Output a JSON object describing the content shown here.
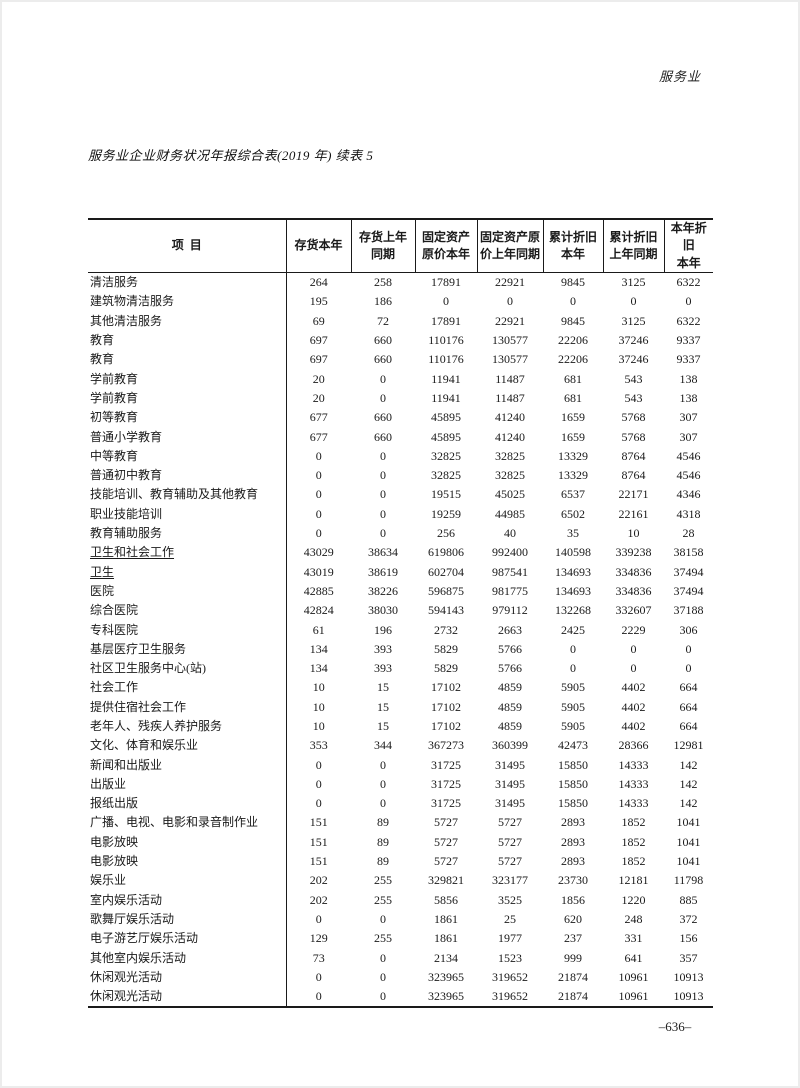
{
  "page": {
    "header_right": "服务业",
    "title": "服务业企业财务状况年报综合表(2019 年) 续表 5",
    "page_number": "–636–"
  },
  "table": {
    "columns": [
      "项目",
      "存货本年",
      "存货上年\n同期",
      "固定资产\n原价本年",
      "固定资产原\n价上年同期",
      "累计折旧\n本年",
      "累计折旧\n上年同期",
      "本年折旧\n本年"
    ],
    "rows": [
      {
        "label": "清洁服务",
        "underline": false,
        "values": [
          "264",
          "258",
          "17891",
          "22921",
          "9845",
          "3125",
          "6322"
        ]
      },
      {
        "label": "建筑物清洁服务",
        "underline": false,
        "values": [
          "195",
          "186",
          "0",
          "0",
          "0",
          "0",
          "0"
        ]
      },
      {
        "label": "其他清洁服务",
        "underline": false,
        "values": [
          "69",
          "72",
          "17891",
          "22921",
          "9845",
          "3125",
          "6322"
        ]
      },
      {
        "label": "教育",
        "underline": false,
        "values": [
          "697",
          "660",
          "110176",
          "130577",
          "22206",
          "37246",
          "9337"
        ]
      },
      {
        "label": "教育",
        "underline": false,
        "values": [
          "697",
          "660",
          "110176",
          "130577",
          "22206",
          "37246",
          "9337"
        ]
      },
      {
        "label": "学前教育",
        "underline": false,
        "values": [
          "20",
          "0",
          "11941",
          "11487",
          "681",
          "543",
          "138"
        ]
      },
      {
        "label": "学前教育",
        "underline": false,
        "values": [
          "20",
          "0",
          "11941",
          "11487",
          "681",
          "543",
          "138"
        ]
      },
      {
        "label": "初等教育",
        "underline": false,
        "values": [
          "677",
          "660",
          "45895",
          "41240",
          "1659",
          "5768",
          "307"
        ]
      },
      {
        "label": "普通小学教育",
        "underline": false,
        "values": [
          "677",
          "660",
          "45895",
          "41240",
          "1659",
          "5768",
          "307"
        ]
      },
      {
        "label": "中等教育",
        "underline": false,
        "values": [
          "0",
          "0",
          "32825",
          "32825",
          "13329",
          "8764",
          "4546"
        ]
      },
      {
        "label": "普通初中教育",
        "underline": false,
        "values": [
          "0",
          "0",
          "32825",
          "32825",
          "13329",
          "8764",
          "4546"
        ]
      },
      {
        "label": "技能培训、教育辅助及其他教育",
        "underline": false,
        "values": [
          "0",
          "0",
          "19515",
          "45025",
          "6537",
          "22171",
          "4346"
        ]
      },
      {
        "label": "职业技能培训",
        "underline": false,
        "values": [
          "0",
          "0",
          "19259",
          "44985",
          "6502",
          "22161",
          "4318"
        ]
      },
      {
        "label": "教育辅助服务",
        "underline": false,
        "values": [
          "0",
          "0",
          "256",
          "40",
          "35",
          "10",
          "28"
        ]
      },
      {
        "label": "卫生和社会工作",
        "underline": true,
        "values": [
          "43029",
          "38634",
          "619806",
          "992400",
          "140598",
          "339238",
          "38158"
        ]
      },
      {
        "label": "卫生",
        "underline": true,
        "values": [
          "43019",
          "38619",
          "602704",
          "987541",
          "134693",
          "334836",
          "37494"
        ]
      },
      {
        "label": "医院",
        "underline": false,
        "values": [
          "42885",
          "38226",
          "596875",
          "981775",
          "134693",
          "334836",
          "37494"
        ]
      },
      {
        "label": "综合医院",
        "underline": false,
        "values": [
          "42824",
          "38030",
          "594143",
          "979112",
          "132268",
          "332607",
          "37188"
        ]
      },
      {
        "label": "专科医院",
        "underline": false,
        "values": [
          "61",
          "196",
          "2732",
          "2663",
          "2425",
          "2229",
          "306"
        ]
      },
      {
        "label": "基层医疗卫生服务",
        "underline": false,
        "values": [
          "134",
          "393",
          "5829",
          "5766",
          "0",
          "0",
          "0"
        ]
      },
      {
        "label": "社区卫生服务中心(站)",
        "underline": false,
        "values": [
          "134",
          "393",
          "5829",
          "5766",
          "0",
          "0",
          "0"
        ]
      },
      {
        "label": "社会工作",
        "underline": false,
        "values": [
          "10",
          "15",
          "17102",
          "4859",
          "5905",
          "4402",
          "664"
        ]
      },
      {
        "label": "提供住宿社会工作",
        "underline": false,
        "values": [
          "10",
          "15",
          "17102",
          "4859",
          "5905",
          "4402",
          "664"
        ]
      },
      {
        "label": "老年人、残疾人养护服务",
        "underline": false,
        "values": [
          "10",
          "15",
          "17102",
          "4859",
          "5905",
          "4402",
          "664"
        ]
      },
      {
        "label": "文化、体育和娱乐业",
        "underline": false,
        "values": [
          "353",
          "344",
          "367273",
          "360399",
          "42473",
          "28366",
          "12981"
        ]
      },
      {
        "label": "新闻和出版业",
        "underline": false,
        "values": [
          "0",
          "0",
          "31725",
          "31495",
          "15850",
          "14333",
          "142"
        ]
      },
      {
        "label": "出版业",
        "underline": false,
        "values": [
          "0",
          "0",
          "31725",
          "31495",
          "15850",
          "14333",
          "142"
        ]
      },
      {
        "label": "报纸出版",
        "underline": false,
        "values": [
          "0",
          "0",
          "31725",
          "31495",
          "15850",
          "14333",
          "142"
        ]
      },
      {
        "label": "广播、电视、电影和录音制作业",
        "underline": false,
        "values": [
          "151",
          "89",
          "5727",
          "5727",
          "2893",
          "1852",
          "1041"
        ]
      },
      {
        "label": "电影放映",
        "underline": false,
        "values": [
          "151",
          "89",
          "5727",
          "5727",
          "2893",
          "1852",
          "1041"
        ]
      },
      {
        "label": "电影放映",
        "underline": false,
        "values": [
          "151",
          "89",
          "5727",
          "5727",
          "2893",
          "1852",
          "1041"
        ]
      },
      {
        "label": "娱乐业",
        "underline": false,
        "values": [
          "202",
          "255",
          "329821",
          "323177",
          "23730",
          "12181",
          "11798"
        ]
      },
      {
        "label": "室内娱乐活动",
        "underline": false,
        "values": [
          "202",
          "255",
          "5856",
          "3525",
          "1856",
          "1220",
          "885"
        ]
      },
      {
        "label": "歌舞厅娱乐活动",
        "underline": false,
        "values": [
          "0",
          "0",
          "1861",
          "25",
          "620",
          "248",
          "372"
        ]
      },
      {
        "label": "电子游艺厅娱乐活动",
        "underline": false,
        "values": [
          "129",
          "255",
          "1861",
          "1977",
          "237",
          "331",
          "156"
        ]
      },
      {
        "label": "其他室内娱乐活动",
        "underline": false,
        "values": [
          "73",
          "0",
          "2134",
          "1523",
          "999",
          "641",
          "357"
        ]
      },
      {
        "label": "休闲观光活动",
        "underline": false,
        "values": [
          "0",
          "0",
          "323965",
          "319652",
          "21874",
          "10961",
          "10913"
        ]
      },
      {
        "label": "休闲观光活动",
        "underline": false,
        "values": [
          "0",
          "0",
          "323965",
          "319652",
          "21874",
          "10961",
          "10913"
        ]
      }
    ]
  }
}
